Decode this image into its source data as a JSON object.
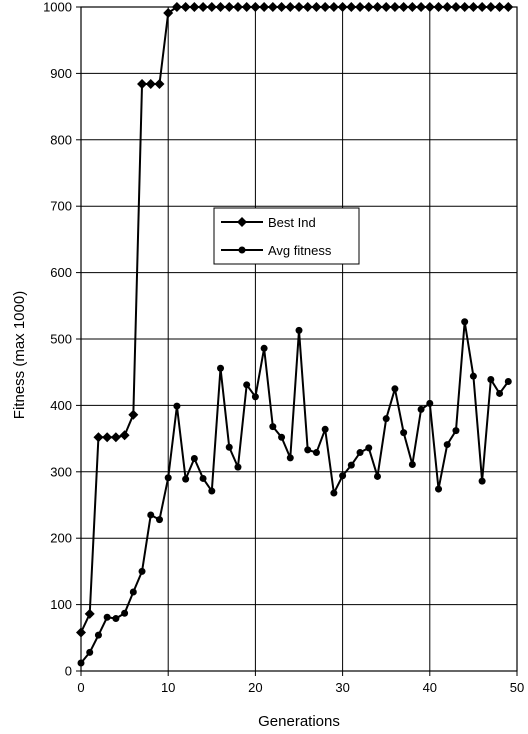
{
  "chart_data": {
    "type": "line",
    "xlabel": "Generations",
    "ylabel": "Fitness (max 1000)",
    "xlim": [
      0,
      50
    ],
    "ylim": [
      0,
      1000
    ],
    "xticks": [
      "0",
      "10",
      "20",
      "30",
      "40",
      "50"
    ],
    "yticks": [
      "0",
      "100",
      "200",
      "300",
      "400",
      "500",
      "600",
      "700",
      "800",
      "900",
      "1000"
    ],
    "grid": true,
    "legend_position": "center",
    "series": [
      {
        "name": "Best Ind",
        "marker": "diamond",
        "x": [
          0,
          1,
          2,
          3,
          4,
          5,
          6,
          7,
          8,
          9,
          10,
          11,
          12,
          13,
          14,
          15,
          16,
          17,
          18,
          19,
          20,
          21,
          22,
          23,
          24,
          25,
          26,
          27,
          28,
          29,
          30,
          31,
          32,
          33,
          34,
          35,
          36,
          37,
          38,
          39,
          40,
          41,
          42,
          43,
          44,
          45,
          46,
          47,
          48,
          49
        ],
        "values": [
          58,
          86,
          352,
          352,
          352,
          355,
          386,
          884,
          884,
          884,
          991,
          1000,
          1000,
          1000,
          1000,
          1000,
          1000,
          1000,
          1000,
          1000,
          1000,
          1000,
          1000,
          1000,
          1000,
          1000,
          1000,
          1000,
          1000,
          1000,
          1000,
          1000,
          1000,
          1000,
          1000,
          1000,
          1000,
          1000,
          1000,
          1000,
          1000,
          1000,
          1000,
          1000,
          1000,
          1000,
          1000,
          1000,
          1000,
          1000
        ]
      },
      {
        "name": "Avg fitness",
        "marker": "circle",
        "x": [
          0,
          1,
          2,
          3,
          4,
          5,
          6,
          7,
          8,
          9,
          10,
          11,
          12,
          13,
          14,
          15,
          16,
          17,
          18,
          19,
          20,
          21,
          22,
          23,
          24,
          25,
          26,
          27,
          28,
          29,
          30,
          31,
          32,
          33,
          34,
          35,
          36,
          37,
          38,
          39,
          40,
          41,
          42,
          43,
          44,
          45,
          46,
          47,
          48,
          49
        ],
        "values": [
          12,
          28,
          54,
          81,
          79,
          87,
          119,
          150,
          235,
          228,
          291,
          399,
          289,
          320,
          290,
          271,
          456,
          337,
          307,
          431,
          413,
          486,
          368,
          352,
          321,
          513,
          333,
          329,
          364,
          268,
          294,
          310,
          329,
          336,
          293,
          380,
          425,
          359,
          311,
          394,
          403,
          274,
          341,
          362,
          526,
          444,
          286,
          439,
          418,
          436
        ]
      }
    ]
  }
}
